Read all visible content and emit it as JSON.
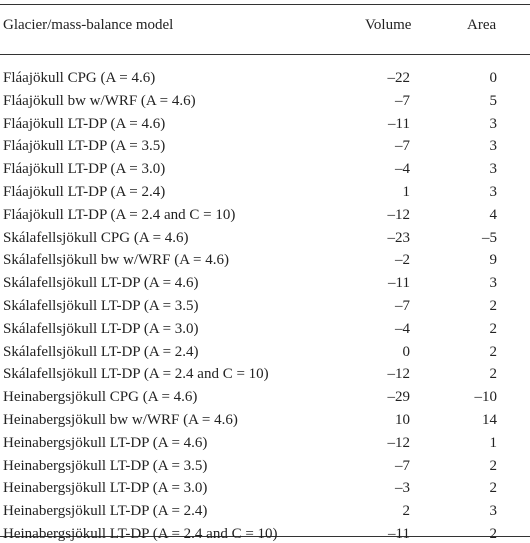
{
  "table": {
    "header": [
      "Glacier/mass-balance model",
      "Volume",
      "Area"
    ],
    "rows": [
      [
        "Fláajökull CPG (A = 4.6)",
        "–22",
        "0"
      ],
      [
        "Fláajökull bw w/WRF (A = 4.6)",
        "–7",
        "5"
      ],
      [
        "Fláajökull LT-DP (A = 4.6)",
        "–11",
        "3"
      ],
      [
        "Fláajökull LT-DP (A = 3.5)",
        "–7",
        "3"
      ],
      [
        "Fláajökull LT-DP (A = 3.0)",
        "–4",
        "3"
      ],
      [
        "Fláajökull LT-DP (A = 2.4)",
        "1",
        "3"
      ],
      [
        "Fláajökull LT-DP (A = 2.4 and C = 10)",
        "–12",
        "4"
      ],
      [
        "Skálafellsjökull CPG (A = 4.6)",
        "–23",
        "–5"
      ],
      [
        "Skálafellsjökull bw w/WRF (A = 4.6)",
        "–2",
        "9"
      ],
      [
        "Skálafellsjökull LT-DP (A = 4.6)",
        "–11",
        "3"
      ],
      [
        "Skálafellsjökull LT-DP (A = 3.5)",
        "–7",
        "2"
      ],
      [
        "Skálafellsjökull LT-DP (A = 3.0)",
        "–4",
        "2"
      ],
      [
        "Skálafellsjökull LT-DP (A = 2.4)",
        "0",
        "2"
      ],
      [
        "Skálafellsjökull LT-DP (A = 2.4 and C = 10)",
        "–12",
        "2"
      ],
      [
        "Heinabergsjökull CPG (A = 4.6)",
        "–29",
        "–10"
      ],
      [
        "Heinabergsjökull bw w/WRF (A = 4.6)",
        "10",
        "14"
      ],
      [
        "Heinabergsjökull LT-DP (A = 4.6)",
        "–12",
        "1"
      ],
      [
        "Heinabergsjökull LT-DP (A = 3.5)",
        "–7",
        "2"
      ],
      [
        "Heinabergsjökull LT-DP (A = 3.0)",
        "–3",
        "2"
      ],
      [
        "Heinabergsjökull LT-DP (A = 2.4)",
        "2",
        "3"
      ],
      [
        "Heinabergsjökull LT-DP (A = 2.4 and C = 10)",
        "–11",
        "2"
      ]
    ]
  }
}
